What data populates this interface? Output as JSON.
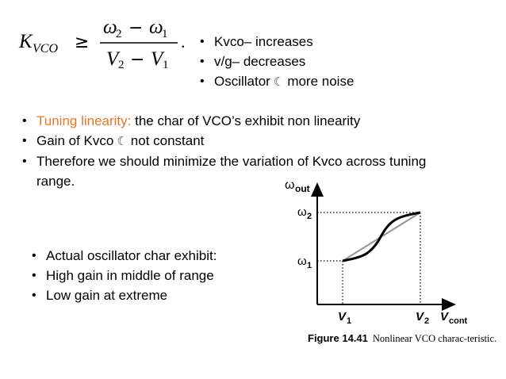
{
  "formula": {
    "lhs": "K",
    "lhs_sub": "VCO",
    "relation": "≥",
    "num_a": "ω",
    "num_a_sub": "2",
    "num_b": "ω",
    "num_b_sub": "1",
    "den_a": "V",
    "den_a_sub": "2",
    "den_b": "V",
    "den_b_sub": "1",
    "minus": "−",
    "period": "."
  },
  "top_bullets": [
    "Kvco– increases",
    "v/g– decreases",
    "Oscillator",
    "more noise"
  ],
  "moon_glyph": "☾",
  "middle_bullets": {
    "item1_highlight": "Tuning linearity:",
    "item1_rest": " the char of VCO’s exhibit non linearity",
    "item2_a": "Gain of Kvco",
    "item2_b": "not constant",
    "item3_line1": "Therefore we should minimize the variation of Kvco across tuning",
    "item3_line2": "range."
  },
  "bottom_bullets": [
    "Actual oscillator char exhibit:",
    "High gain in middle of range",
    "Low gain at extreme"
  ],
  "figure": {
    "y_axis_label": "ω",
    "y_axis_sub": "out",
    "w2_label": "ω",
    "w2_sub": "2",
    "w1_label": "ω",
    "w1_sub": "1",
    "v1_label": "V",
    "v1_sub": "1",
    "v2_label": "V",
    "v2_sub": "2",
    "x_axis_label": "V",
    "x_axis_sub": "cont",
    "caption_fig": "Figure 14.41",
    "caption_text": "Nonlinear VCO charac-teristic."
  },
  "colors": {
    "highlight": "#e87722",
    "gray_line": "#999999",
    "text": "#000000"
  }
}
